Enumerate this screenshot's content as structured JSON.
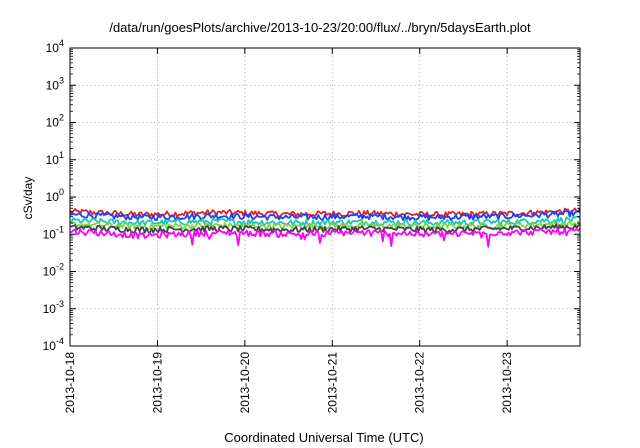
{
  "chart_data": {
    "type": "line",
    "title": "/data/run/goesPlots/archive/2013-10-23/20:00/flux/../bryn/5daysEarth.plot",
    "xlabel": "Coordinated Universal Time (UTC)",
    "ylabel": "cSv/day",
    "yscale": "log",
    "ylim": [
      0.0001,
      10000
    ],
    "xlim": [
      "2013-10-18",
      "2013-10-23 20:00"
    ],
    "x_ticks": [
      "2013-10-18",
      "2013-10-19",
      "2013-10-20",
      "2013-10-21",
      "2013-10-22",
      "2013-10-23"
    ],
    "y_ticks": [
      {
        "base": "10",
        "exp": "-4"
      },
      {
        "base": "10",
        "exp": "-3"
      },
      {
        "base": "10",
        "exp": "-2"
      },
      {
        "base": "10",
        "exp": "-1"
      },
      {
        "base": "10",
        "exp": "0"
      },
      {
        "base": "10",
        "exp": "1"
      },
      {
        "base": "10",
        "exp": "2"
      },
      {
        "base": "10",
        "exp": "3"
      },
      {
        "base": "10",
        "exp": "4"
      }
    ],
    "grid": true,
    "legend": "none",
    "series": [
      {
        "color": "#d62728",
        "values": [
          0.4,
          0.33,
          0.38,
          0.34,
          0.36,
          0.33,
          0.35,
          0.42
        ]
      },
      {
        "color": "#1f3fff",
        "values": [
          0.33,
          0.28,
          0.31,
          0.28,
          0.3,
          0.28,
          0.3,
          0.36
        ]
      },
      {
        "color": "#17c9b5",
        "values": [
          0.23,
          0.2,
          0.22,
          0.2,
          0.21,
          0.2,
          0.21,
          0.25
        ]
      },
      {
        "color": "#7cd64a",
        "values": [
          0.18,
          0.16,
          0.17,
          0.16,
          0.17,
          0.16,
          0.17,
          0.19
        ]
      },
      {
        "color": "#444444",
        "values": [
          0.15,
          0.13,
          0.14,
          0.13,
          0.14,
          0.13,
          0.14,
          0.16
        ]
      },
      {
        "color": "#ff00ff",
        "values": [
          0.12,
          0.09,
          0.11,
          0.1,
          0.11,
          0.1,
          0.11,
          0.12
        ]
      }
    ]
  }
}
